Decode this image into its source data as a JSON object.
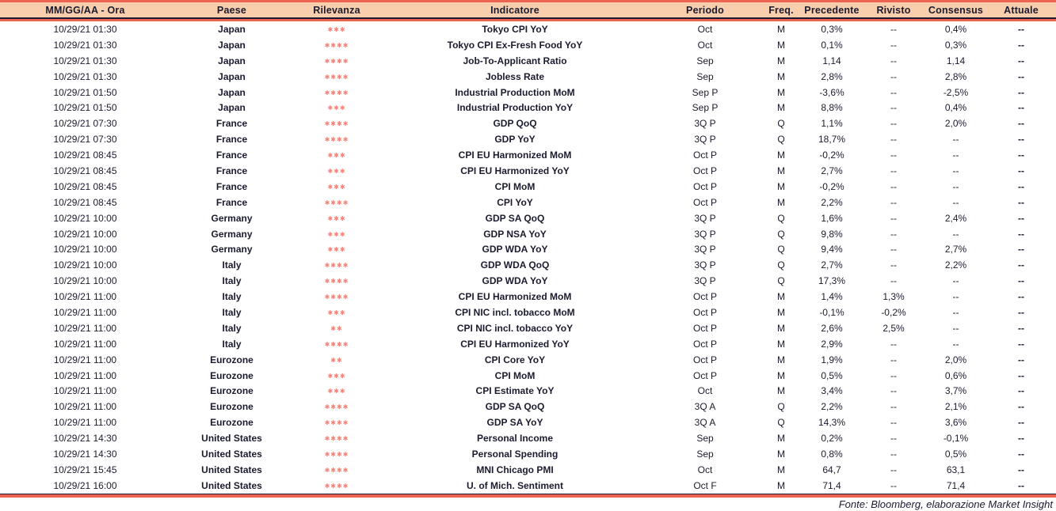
{
  "header": {
    "columns": [
      {
        "key": "datetime",
        "label": "MM/GG/AA - Ora"
      },
      {
        "key": "country",
        "label": "Paese"
      },
      {
        "key": "relevance",
        "label": "Rilevanza"
      },
      {
        "key": "indicator",
        "label": "Indicatore"
      },
      {
        "key": "period",
        "label": "Periodo"
      },
      {
        "key": "freq",
        "label": "Freq."
      },
      {
        "key": "previous",
        "label": "Precedente"
      },
      {
        "key": "revised",
        "label": "Rivisto"
      },
      {
        "key": "consensus",
        "label": "Consensus"
      },
      {
        "key": "actual",
        "label": "Attuale"
      }
    ]
  },
  "rows": [
    {
      "datetime": "10/29/21 01:30",
      "country": "Japan",
      "relevance": 3,
      "indicator": "Tokyo CPI YoY",
      "period": "Oct",
      "freq": "M",
      "previous": "0,3%",
      "revised": "--",
      "consensus": "0,4%",
      "actual": "--"
    },
    {
      "datetime": "10/29/21 01:30",
      "country": "Japan",
      "relevance": 4,
      "indicator": "Tokyo CPI Ex-Fresh Food YoY",
      "period": "Oct",
      "freq": "M",
      "previous": "0,1%",
      "revised": "--",
      "consensus": "0,3%",
      "actual": "--"
    },
    {
      "datetime": "10/29/21 01:30",
      "country": "Japan",
      "relevance": 4,
      "indicator": "Job-To-Applicant Ratio",
      "period": "Sep",
      "freq": "M",
      "previous": "1,14",
      "revised": "--",
      "consensus": "1,14",
      "actual": "--"
    },
    {
      "datetime": "10/29/21 01:30",
      "country": "Japan",
      "relevance": 4,
      "indicator": "Jobless Rate",
      "period": "Sep",
      "freq": "M",
      "previous": "2,8%",
      "revised": "--",
      "consensus": "2,8%",
      "actual": "--"
    },
    {
      "datetime": "10/29/21 01:50",
      "country": "Japan",
      "relevance": 4,
      "indicator": "Industrial Production MoM",
      "period": "Sep P",
      "freq": "M",
      "previous": "-3,6%",
      "revised": "--",
      "consensus": "-2,5%",
      "actual": "--"
    },
    {
      "datetime": "10/29/21 01:50",
      "country": "Japan",
      "relevance": 3,
      "indicator": "Industrial Production YoY",
      "period": "Sep P",
      "freq": "M",
      "previous": "8,8%",
      "revised": "--",
      "consensus": "0,4%",
      "actual": "--"
    },
    {
      "datetime": "10/29/21 07:30",
      "country": "France",
      "relevance": 4,
      "indicator": "GDP QoQ",
      "period": "3Q P",
      "freq": "Q",
      "previous": "1,1%",
      "revised": "--",
      "consensus": "2,0%",
      "actual": "--"
    },
    {
      "datetime": "10/29/21 07:30",
      "country": "France",
      "relevance": 4,
      "indicator": "GDP YoY",
      "period": "3Q P",
      "freq": "Q",
      "previous": "18,7%",
      "revised": "--",
      "consensus": "--",
      "actual": "--"
    },
    {
      "datetime": "10/29/21 08:45",
      "country": "France",
      "relevance": 3,
      "indicator": "CPI EU Harmonized MoM",
      "period": "Oct P",
      "freq": "M",
      "previous": "-0,2%",
      "revised": "--",
      "consensus": "--",
      "actual": "--"
    },
    {
      "datetime": "10/29/21 08:45",
      "country": "France",
      "relevance": 3,
      "indicator": "CPI EU Harmonized YoY",
      "period": "Oct P",
      "freq": "M",
      "previous": "2,7%",
      "revised": "--",
      "consensus": "--",
      "actual": "--"
    },
    {
      "datetime": "10/29/21 08:45",
      "country": "France",
      "relevance": 3,
      "indicator": "CPI MoM",
      "period": "Oct P",
      "freq": "M",
      "previous": "-0,2%",
      "revised": "--",
      "consensus": "--",
      "actual": "--"
    },
    {
      "datetime": "10/29/21 08:45",
      "country": "France",
      "relevance": 4,
      "indicator": "CPI YoY",
      "period": "Oct P",
      "freq": "M",
      "previous": "2,2%",
      "revised": "--",
      "consensus": "--",
      "actual": "--"
    },
    {
      "datetime": "10/29/21 10:00",
      "country": "Germany",
      "relevance": 3,
      "indicator": "GDP SA QoQ",
      "period": "3Q P",
      "freq": "Q",
      "previous": "1,6%",
      "revised": "--",
      "consensus": "2,4%",
      "actual": "--"
    },
    {
      "datetime": "10/29/21 10:00",
      "country": "Germany",
      "relevance": 3,
      "indicator": "GDP NSA YoY",
      "period": "3Q P",
      "freq": "Q",
      "previous": "9,8%",
      "revised": "--",
      "consensus": "--",
      "actual": "--"
    },
    {
      "datetime": "10/29/21 10:00",
      "country": "Germany",
      "relevance": 3,
      "indicator": "GDP WDA YoY",
      "period": "3Q P",
      "freq": "Q",
      "previous": "9,4%",
      "revised": "--",
      "consensus": "2,7%",
      "actual": "--"
    },
    {
      "datetime": "10/29/21 10:00",
      "country": "Italy",
      "relevance": 4,
      "indicator": "GDP WDA QoQ",
      "period": "3Q P",
      "freq": "Q",
      "previous": "2,7%",
      "revised": "--",
      "consensus": "2,2%",
      "actual": "--"
    },
    {
      "datetime": "10/29/21 10:00",
      "country": "Italy",
      "relevance": 4,
      "indicator": "GDP WDA YoY",
      "period": "3Q P",
      "freq": "Q",
      "previous": "17,3%",
      "revised": "--",
      "consensus": "--",
      "actual": "--"
    },
    {
      "datetime": "10/29/21 11:00",
      "country": "Italy",
      "relevance": 4,
      "indicator": "CPI EU Harmonized MoM",
      "period": "Oct P",
      "freq": "M",
      "previous": "1,4%",
      "revised": "1,3%",
      "consensus": "--",
      "actual": "--"
    },
    {
      "datetime": "10/29/21 11:00",
      "country": "Italy",
      "relevance": 3,
      "indicator": "CPI NIC incl. tobacco MoM",
      "period": "Oct P",
      "freq": "M",
      "previous": "-0,1%",
      "revised": "-0,2%",
      "consensus": "--",
      "actual": "--"
    },
    {
      "datetime": "10/29/21 11:00",
      "country": "Italy",
      "relevance": 2,
      "indicator": "CPI NIC incl. tobacco YoY",
      "period": "Oct P",
      "freq": "M",
      "previous": "2,6%",
      "revised": "2,5%",
      "consensus": "--",
      "actual": "--"
    },
    {
      "datetime": "10/29/21 11:00",
      "country": "Italy",
      "relevance": 4,
      "indicator": "CPI EU Harmonized YoY",
      "period": "Oct P",
      "freq": "M",
      "previous": "2,9%",
      "revised": "--",
      "consensus": "--",
      "actual": "--"
    },
    {
      "datetime": "10/29/21 11:00",
      "country": "Eurozone",
      "relevance": 2,
      "indicator": "CPI Core YoY",
      "period": "Oct P",
      "freq": "M",
      "previous": "1,9%",
      "revised": "--",
      "consensus": "2,0%",
      "actual": "--"
    },
    {
      "datetime": "10/29/21 11:00",
      "country": "Eurozone",
      "relevance": 3,
      "indicator": "CPI MoM",
      "period": "Oct P",
      "freq": "M",
      "previous": "0,5%",
      "revised": "--",
      "consensus": "0,6%",
      "actual": "--"
    },
    {
      "datetime": "10/29/21 11:00",
      "country": "Eurozone",
      "relevance": 3,
      "indicator": "CPI Estimate YoY",
      "period": "Oct",
      "freq": "M",
      "previous": "3,4%",
      "revised": "--",
      "consensus": "3,7%",
      "actual": "--"
    },
    {
      "datetime": "10/29/21 11:00",
      "country": "Eurozone",
      "relevance": 4,
      "indicator": "GDP SA QoQ",
      "period": "3Q A",
      "freq": "Q",
      "previous": "2,2%",
      "revised": "--",
      "consensus": "2,1%",
      "actual": "--"
    },
    {
      "datetime": "10/29/21 11:00",
      "country": "Eurozone",
      "relevance": 4,
      "indicator": "GDP SA YoY",
      "period": "3Q A",
      "freq": "Q",
      "previous": "14,3%",
      "revised": "--",
      "consensus": "3,6%",
      "actual": "--"
    },
    {
      "datetime": "10/29/21 14:30",
      "country": "United States",
      "relevance": 4,
      "indicator": "Personal Income",
      "period": "Sep",
      "freq": "M",
      "previous": "0,2%",
      "revised": "--",
      "consensus": "-0,1%",
      "actual": "--"
    },
    {
      "datetime": "10/29/21 14:30",
      "country": "United States",
      "relevance": 4,
      "indicator": "Personal Spending",
      "period": "Sep",
      "freq": "M",
      "previous": "0,8%",
      "revised": "--",
      "consensus": "0,5%",
      "actual": "--"
    },
    {
      "datetime": "10/29/21 15:45",
      "country": "United States",
      "relevance": 4,
      "indicator": "MNI Chicago PMI",
      "period": "Oct",
      "freq": "M",
      "previous": "64,7",
      "revised": "--",
      "consensus": "63,1",
      "actual": "--"
    },
    {
      "datetime": "10/29/21 16:00",
      "country": "United States",
      "relevance": 4,
      "indicator": "U. of Mich. Sentiment",
      "period": "Oct F",
      "freq": "M",
      "previous": "71,4",
      "revised": "--",
      "consensus": "71,4",
      "actual": "--"
    }
  ],
  "footer": {
    "source_note": "Fonte: Bloomberg, elaborazione Market Insight"
  },
  "icons": {
    "relevance_star": "✱"
  },
  "colors": {
    "accent_salmon": "#ed6351",
    "header_peach": "#f8ceac",
    "text_navy": "#1b1b2f",
    "star_coral": "#f0837a"
  }
}
